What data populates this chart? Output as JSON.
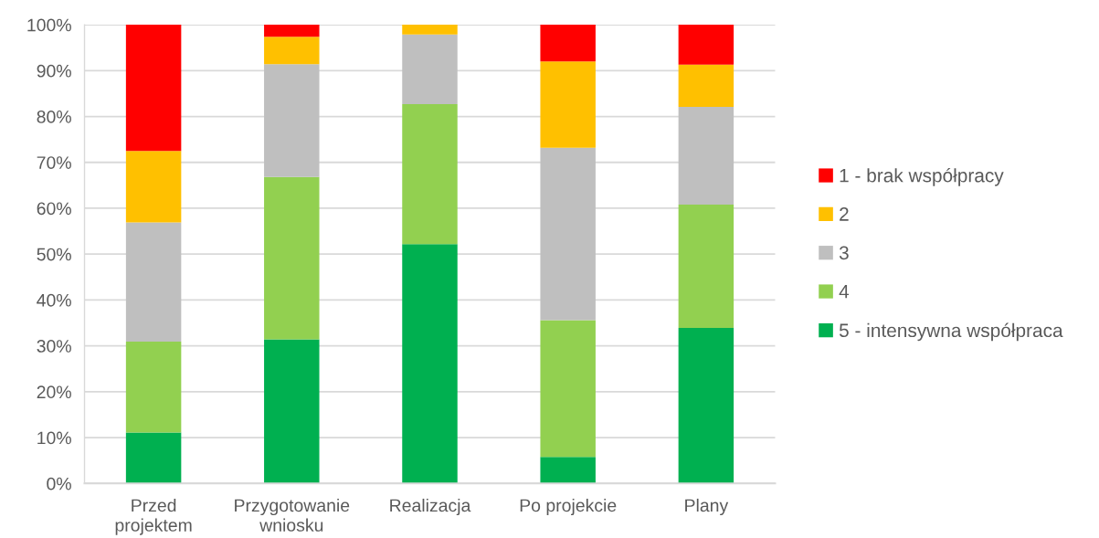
{
  "chart_data": {
    "type": "bar",
    "stacked": true,
    "categories": [
      "Przed\nprojektem",
      "Przygotowanie\nwniosku",
      "Realizacja",
      "Po projekcie",
      "Plany"
    ],
    "series": [
      {
        "name": "5 - intensywna współpraca",
        "color": "#00b050",
        "values": [
          11.1,
          31.4,
          52.2,
          5.8,
          33.9
        ]
      },
      {
        "name": "4",
        "color": "#92d050",
        "values": [
          19.8,
          35.4,
          30.5,
          29.8,
          26.9
        ]
      },
      {
        "name": "3",
        "color": "#bfbfbf",
        "values": [
          26.0,
          24.6,
          15.2,
          37.6,
          21.3
        ]
      },
      {
        "name": "2",
        "color": "#ffc000",
        "values": [
          15.6,
          6.0,
          2.1,
          18.8,
          9.2
        ]
      },
      {
        "name": "1 - brak współpracy",
        "color": "#ff0000",
        "values": [
          27.5,
          2.6,
          0,
          8.0,
          8.7
        ]
      }
    ],
    "ylim": [
      0,
      100
    ],
    "yticks": [
      {
        "value": 0,
        "label": "0%"
      },
      {
        "value": 10,
        "label": "10%"
      },
      {
        "value": 20,
        "label": "20%"
      },
      {
        "value": 30,
        "label": "30%"
      },
      {
        "value": 40,
        "label": "40%"
      },
      {
        "value": 50,
        "label": "50%"
      },
      {
        "value": 60,
        "label": "60%"
      },
      {
        "value": 70,
        "label": "70%"
      },
      {
        "value": 80,
        "label": "80%"
      },
      {
        "value": 90,
        "label": "90%"
      },
      {
        "value": 100,
        "label": "100%"
      }
    ],
    "grid": "y",
    "legend": "right"
  }
}
